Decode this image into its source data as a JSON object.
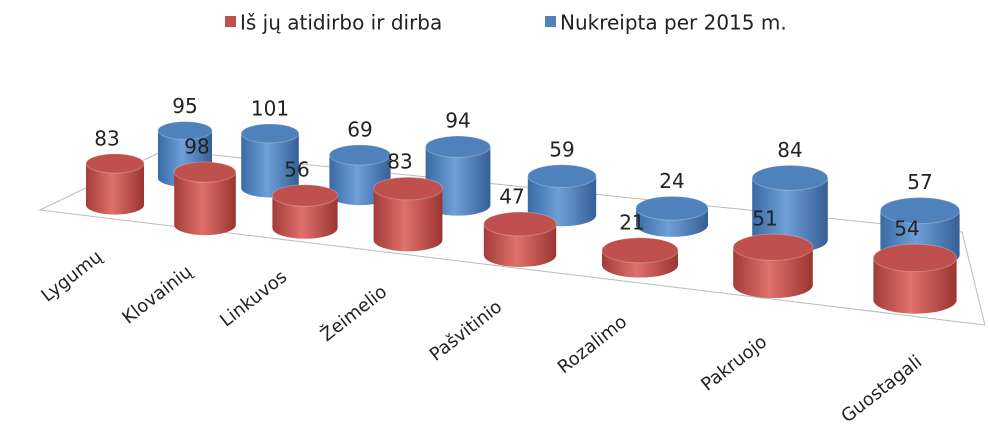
{
  "chart_data": {
    "type": "bar3d",
    "categories": [
      "Lygumų",
      "Klovainių",
      "Linkuvos",
      "Žeimelio",
      "Pašvitinio",
      "Rozalimo",
      "Pakruojo",
      "Guostagali"
    ],
    "series": [
      {
        "name": "Iš jų atidirbo ir dirba",
        "color": "#c0504d",
        "values": [
          83,
          98,
          56,
          83,
          47,
          21,
          51,
          54
        ]
      },
      {
        "name": "Nukreipta per 2015 m.",
        "color": "#4f81bd",
        "values": [
          95,
          101,
          69,
          94,
          59,
          24,
          84,
          57
        ]
      }
    ],
    "legend": "top"
  }
}
